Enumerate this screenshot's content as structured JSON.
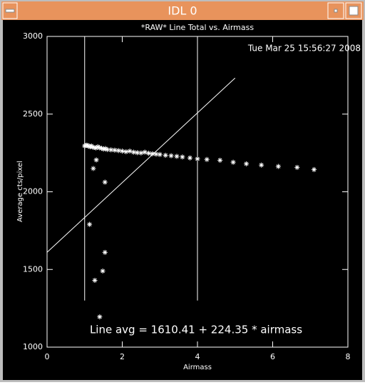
{
  "window": {
    "title": "IDL 0"
  },
  "chart_data": {
    "type": "scatter",
    "title": "*RAW* Line Total vs. Airmass",
    "date": "Tue Mar 25 15:56:27 2008",
    "x_label": "Airmass",
    "y_label": "Average cts/pixel",
    "annotation": "Line avg = 1610.41 + 224.35 * airmass",
    "color": "#ffffff",
    "xlim": [
      0,
      8
    ],
    "xticks": [
      0,
      2,
      4,
      6,
      8
    ],
    "ylim": [
      1000,
      3000
    ],
    "yticks": [
      1000,
      1500,
      2000,
      2500,
      3000
    ],
    "x": [
      1.0,
      1.03,
      1.06,
      1.09,
      1.12,
      1.15,
      1.18,
      1.21,
      1.25,
      1.3,
      1.35,
      1.4,
      1.45,
      1.5,
      1.55,
      1.6,
      1.7,
      1.8,
      1.9,
      2.0,
      2.1,
      2.2,
      2.3,
      2.4,
      2.5,
      2.6,
      2.7,
      2.8,
      2.9,
      3.0,
      3.15,
      3.3,
      3.45,
      3.6,
      3.8,
      4.0,
      4.25,
      4.6,
      4.95,
      5.3,
      5.7,
      6.15,
      6.65,
      7.1,
      1.13,
      1.23,
      1.31,
      1.27,
      1.4,
      1.48,
      1.54,
      1.54
    ],
    "values": [
      2295,
      2298,
      2300,
      2296,
      2293,
      2290,
      2295,
      2288,
      2285,
      2282,
      2290,
      2283,
      2280,
      2275,
      2278,
      2272,
      2270,
      2268,
      2265,
      2262,
      2258,
      2262,
      2255,
      2252,
      2250,
      2255,
      2248,
      2245,
      2242,
      2240,
      2235,
      2232,
      2228,
      2224,
      2218,
      2212,
      2208,
      2203,
      2190,
      2180,
      2172,
      2163,
      2157,
      2143,
      1790,
      2150,
      2205,
      1430,
      1195,
      1490,
      1610,
      2062
    ],
    "fit_line": {
      "x": [
        0,
        5
      ],
      "y": [
        1610.41,
        2732.16
      ]
    },
    "vlines": [
      1,
      4
    ],
    "vline_range": [
      1300,
      3000
    ]
  }
}
